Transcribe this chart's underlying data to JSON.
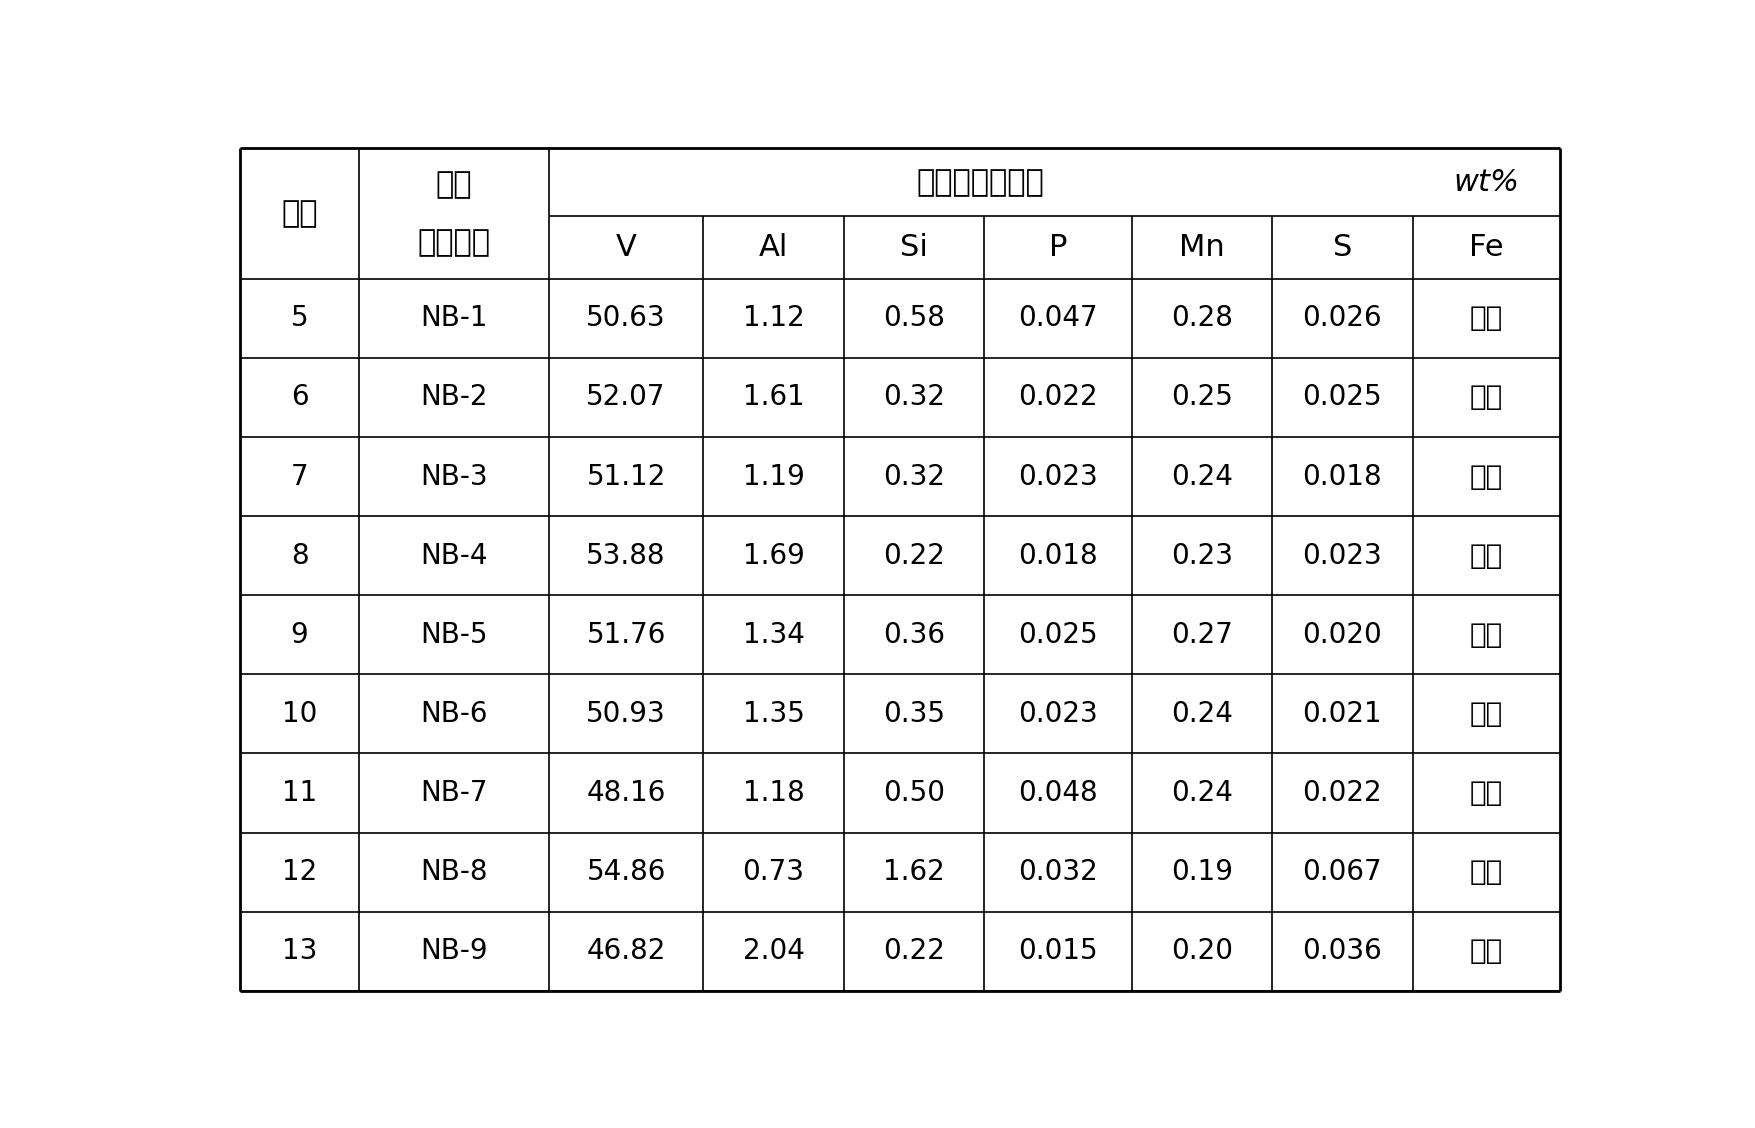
{
  "header_col0": "序号",
  "header_col1_line1": "标准",
  "header_col1_line2": "标品编号",
  "header_span": "标样各元素含量",
  "header_unit": "wt%",
  "elements": [
    "V",
    "Al",
    "Si",
    "P",
    "Mn",
    "S",
    "Fe"
  ],
  "rows": [
    [
      "5",
      "NB-1",
      "50.63",
      "1.12",
      "0.58",
      "0.047",
      "0.28",
      "0.026",
      "余量"
    ],
    [
      "6",
      "NB-2",
      "52.07",
      "1.61",
      "0.32",
      "0.022",
      "0.25",
      "0.025",
      "余量"
    ],
    [
      "7",
      "NB-3",
      "51.12",
      "1.19",
      "0.32",
      "0.023",
      "0.24",
      "0.018",
      "余量"
    ],
    [
      "8",
      "NB-4",
      "53.88",
      "1.69",
      "0.22",
      "0.018",
      "0.23",
      "0.023",
      "余量"
    ],
    [
      "9",
      "NB-5",
      "51.76",
      "1.34",
      "0.36",
      "0.025",
      "0.27",
      "0.020",
      "余量"
    ],
    [
      "10",
      "NB-6",
      "50.93",
      "1.35",
      "0.35",
      "0.023",
      "0.24",
      "0.021",
      "余量"
    ],
    [
      "11",
      "NB-7",
      "48.16",
      "1.18",
      "0.50",
      "0.048",
      "0.24",
      "0.022",
      "余量"
    ],
    [
      "12",
      "NB-8",
      "54.86",
      "0.73",
      "1.62",
      "0.032",
      "0.19",
      "0.067",
      "余量"
    ],
    [
      "13",
      "NB-9",
      "46.82",
      "2.04",
      "0.22",
      "0.015",
      "0.20",
      "0.036",
      "余量"
    ]
  ],
  "background_color": "#ffffff",
  "line_color": "#000000",
  "text_color": "#000000",
  "outer_lw": 2.0,
  "inner_lw": 1.2,
  "font_size": 20,
  "header_font_size": 22,
  "fig_width": 17.56,
  "fig_height": 11.28,
  "dpi": 100
}
